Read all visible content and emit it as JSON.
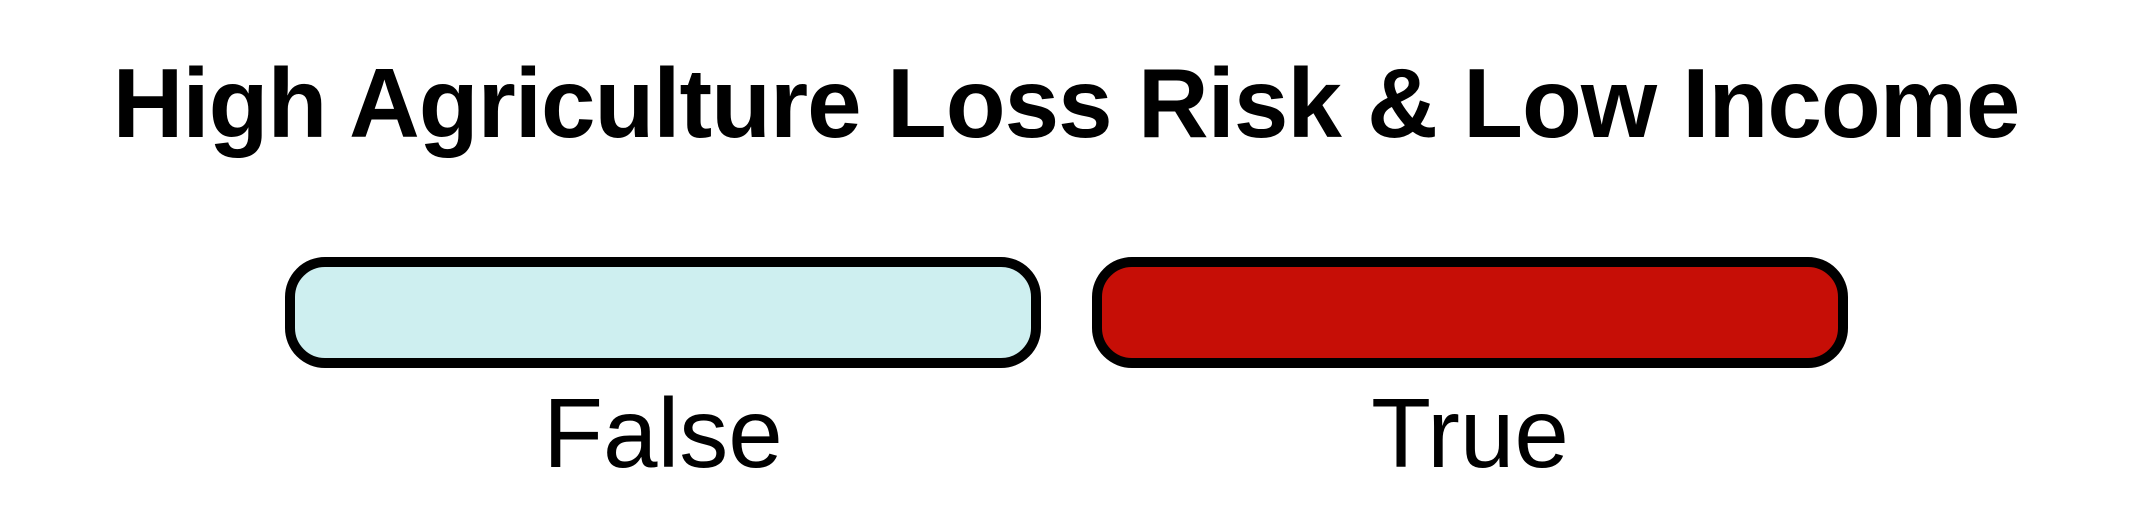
{
  "title": "High Agriculture Loss Risk & Low Income",
  "items": [
    {
      "label": "False",
      "color": "#ceeff0"
    },
    {
      "label": "True",
      "color": "#c60e06"
    }
  ]
}
